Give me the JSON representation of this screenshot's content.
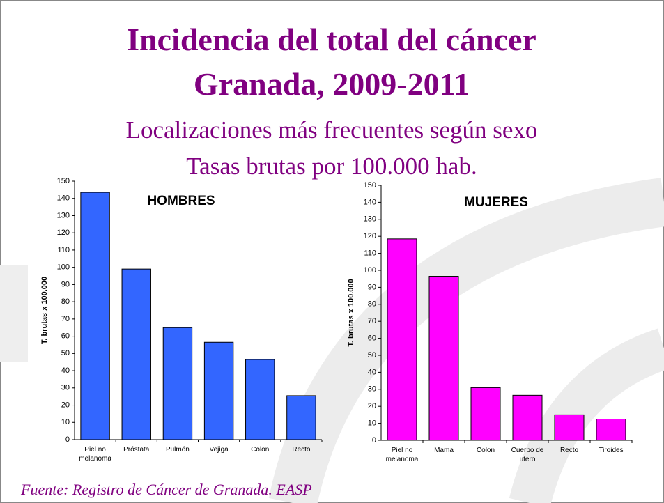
{
  "slide": {
    "title_lines": [
      "Incidencia del total del cáncer",
      "Granada, 2009-2011"
    ],
    "subtitle_lines": [
      "Localizaciones más frecuentes según sexo",
      "Tasas brutas por 100.000 hab."
    ],
    "source": "Fuente: Registro de Cáncer de Granada. EASP"
  },
  "chart_data": [
    {
      "type": "bar",
      "title": "HOMBRES",
      "y_label": "T. brutas x 100.000",
      "categories": [
        "Piel no melanoma",
        "Próstata",
        "Pulmón",
        "Vejiga",
        "Colon",
        "Recto"
      ],
      "values": [
        143.5,
        99,
        65,
        56.5,
        46.5,
        25.5
      ],
      "color": "#3366ff",
      "ylim": [
        0,
        150
      ],
      "yticks": [
        0,
        10,
        20,
        30,
        40,
        50,
        60,
        70,
        80,
        90,
        100,
        110,
        120,
        130,
        140,
        150
      ],
      "grid": false
    },
    {
      "type": "bar",
      "title": "MUJERES",
      "y_label": "T. brutas x 100.000",
      "categories": [
        "Piel no melanoma",
        "Mama",
        "Colon",
        "Cuerpo de utero",
        "Recto",
        "Tiroides"
      ],
      "values": [
        118.5,
        96.5,
        31,
        26.5,
        15,
        12.5
      ],
      "color": "#ff00ff",
      "ylim": [
        0,
        150
      ],
      "yticks": [
        0,
        10,
        20,
        30,
        40,
        50,
        60,
        70,
        80,
        90,
        100,
        110,
        120,
        130,
        140,
        150
      ],
      "grid": false
    }
  ]
}
